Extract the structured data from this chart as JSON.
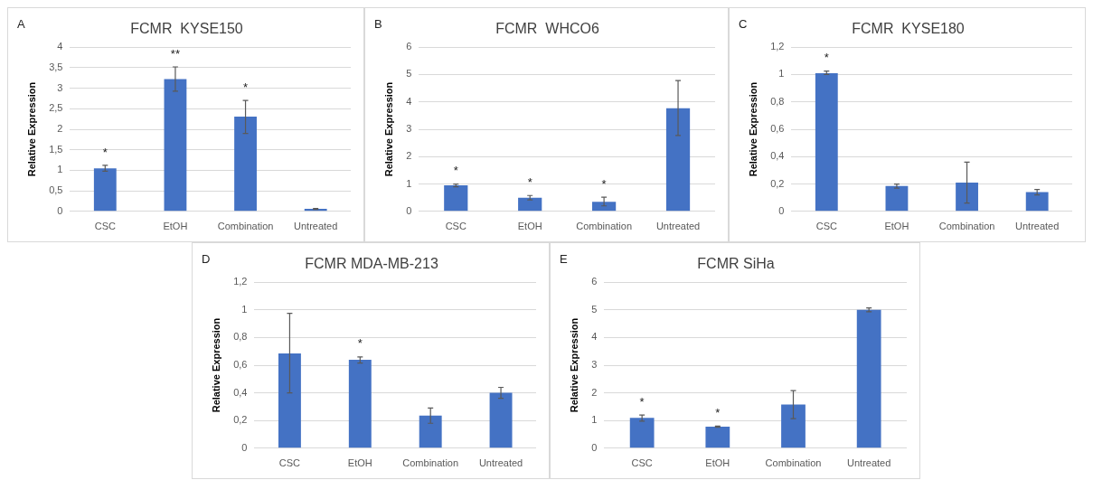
{
  "chart_data": [
    {
      "type": "bar",
      "title": "FCMR  KYSE150",
      "ylabel": "Relative Expression",
      "categories": [
        "CSC",
        "EtOH",
        "Combination",
        "Untreated"
      ],
      "values": [
        1.05,
        3.22,
        2.31,
        0.06
      ],
      "errors": [
        [
          0.98,
          1.12
        ],
        [
          2.93,
          3.52
        ],
        [
          1.9,
          2.7
        ],
        [
          0.05,
          0.07
        ]
      ],
      "color": "#4472c4",
      "ylim": [
        0,
        4
      ],
      "yticks": [
        0,
        {
          "value": 0.5,
          "label": "0,5"
        },
        1,
        {
          "value": 1.5,
          "label": "1,5"
        },
        2,
        {
          "value": 2.5,
          "label": "2,5"
        },
        3,
        {
          "value": 3.5,
          "label": "3,5"
        },
        4
      ],
      "grid": "y",
      "annotations": [
        "A",
        {
          "text": "*",
          "x": "CSC",
          "y": 1.05
        },
        {
          "text": "**",
          "x": "EtOH",
          "y": 3.22
        },
        {
          "text": "*",
          "x": "Combination",
          "y": 2.31
        }
      ]
    },
    {
      "type": "bar",
      "title": "FCMR  WHCO6",
      "ylabel": "Relative Expression",
      "categories": [
        "CSC",
        "EtOH",
        "Combination",
        "Untreated"
      ],
      "values": [
        0.95,
        0.5,
        0.35,
        3.77
      ],
      "errors": [
        [
          0.9,
          1.0
        ],
        [
          0.42,
          0.58
        ],
        [
          0.2,
          0.52
        ],
        [
          2.77,
          4.78
        ]
      ],
      "color": "#4472c4",
      "ylim": [
        0,
        6
      ],
      "yticks": [
        0,
        1,
        2,
        3,
        4,
        5,
        6
      ],
      "grid": "y",
      "annotations": [
        "B",
        {
          "text": "*",
          "x": "CSC",
          "y": 0.95
        },
        {
          "text": "*",
          "x": "EtOH",
          "y": 0.5
        },
        {
          "text": "*",
          "x": "Combination",
          "y": 0.35
        }
      ]
    },
    {
      "type": "bar",
      "title": "FCMR  KYSE180",
      "ylabel": "Relative Expression",
      "categories": [
        "CSC",
        "EtOH",
        "Combination",
        "Untreated"
      ],
      "values": [
        1.01,
        0.185,
        0.21,
        0.14
      ],
      "errors": [
        [
          1.0,
          1.025
        ],
        [
          0.17,
          0.2
        ],
        [
          0.06,
          0.36
        ],
        [
          0.12,
          0.16
        ]
      ],
      "color": "#4472c4",
      "ylim": [
        0,
        1.2
      ],
      "yticks": [
        0,
        {
          "value": 0.2,
          "label": "0,2"
        },
        {
          "value": 0.4,
          "label": "0,4"
        },
        {
          "value": 0.6,
          "label": "0,6"
        },
        {
          "value": 0.8,
          "label": "0,8"
        },
        1,
        {
          "value": 1.2,
          "label": "1,2"
        }
      ],
      "grid": "y",
      "annotations": [
        "C",
        {
          "text": "*",
          "x": "CSC",
          "y": 1.01
        }
      ]
    },
    {
      "type": "bar",
      "title": "FCMR MDA-MB-213",
      "ylabel": "Relative Expression",
      "categories": [
        "CSC",
        "EtOH",
        "Combination",
        "Untreated"
      ],
      "values": [
        0.685,
        0.64,
        0.235,
        0.4
      ],
      "errors": [
        [
          0.4,
          0.975
        ],
        [
          0.615,
          0.66
        ],
        [
          0.18,
          0.29
        ],
        [
          0.36,
          0.44
        ]
      ],
      "color": "#4472c4",
      "ylim": [
        0,
        1.2
      ],
      "yticks": [
        0,
        {
          "value": 0.2,
          "label": "0,2"
        },
        {
          "value": 0.4,
          "label": "0,4"
        },
        {
          "value": 0.6,
          "label": "0,6"
        },
        {
          "value": 0.8,
          "label": "0,8"
        },
        1,
        {
          "value": 1.2,
          "label": "1,2"
        }
      ],
      "grid": "y",
      "annotations": [
        "D",
        {
          "text": "*",
          "x": "EtOH",
          "y": 0.64
        }
      ]
    },
    {
      "type": "bar",
      "title": "FCMR SiHa",
      "ylabel": "Relative Expression",
      "categories": [
        "CSC",
        "EtOH",
        "Combination",
        "Untreated"
      ],
      "values": [
        1.1,
        0.78,
        1.58,
        5.0
      ],
      "errors": [
        [
          0.98,
          1.2
        ],
        [
          0.76,
          0.8
        ],
        [
          1.07,
          2.08
        ],
        [
          4.93,
          5.07
        ]
      ],
      "color": "#4472c4",
      "ylim": [
        0,
        6
      ],
      "yticks": [
        0,
        1,
        2,
        3,
        4,
        5,
        6
      ],
      "grid": "y",
      "annotations": [
        "E",
        {
          "text": "*",
          "x": "CSC",
          "y": 1.1
        },
        {
          "text": "*",
          "x": "EtOH",
          "y": 0.78
        }
      ]
    }
  ]
}
